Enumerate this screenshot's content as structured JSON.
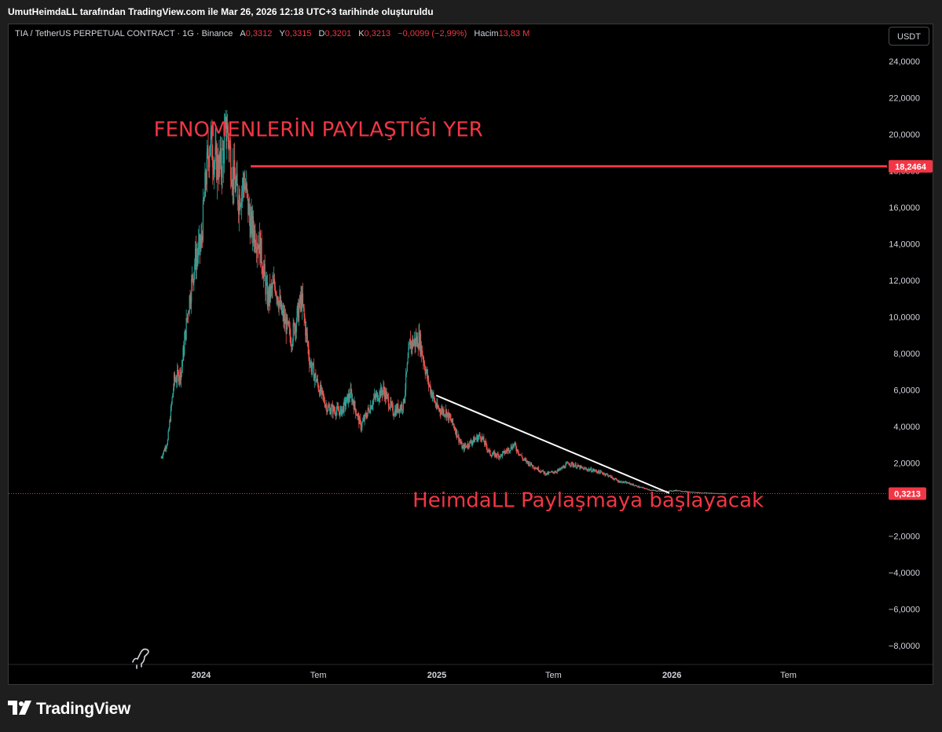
{
  "header": {
    "attribution": "UmutHeimdaLL tarafından TradingView.com ile Mar 26, 2026 12:18 UTC+3 tarihinde oluşturuldu"
  },
  "legend": {
    "symbol": "TIA / TetherUS PERPETUAL CONTRACT · 1G · Binance",
    "open_label": "A",
    "open_value": "0,3312",
    "high_label": "Y",
    "high_value": "0,3315",
    "low_label": "D",
    "low_value": "0,3201",
    "close_label": "K",
    "close_value": "0,3213",
    "change": "−0,0099 (−2,99%)",
    "volume_label": "Hacim",
    "volume_value": "13,83 M"
  },
  "currency_button": "USDT",
  "colors": {
    "up": "#26a69a",
    "down": "#ef5350",
    "accent_red": "#f23645",
    "annotation_red": "#f23645",
    "trendline": "#ffffff",
    "axis_text": "#d1d4dc"
  },
  "footer": {
    "brand": "TradingView",
    "brand_icon": "tradingview-logo-icon"
  },
  "chart_data": {
    "type": "candlestick",
    "y_axis": {
      "ticks": [
        24,
        22,
        20,
        18,
        16,
        14,
        12,
        10,
        8,
        6,
        4,
        2,
        -2,
        -4,
        -6,
        -8
      ],
      "tick_labels": [
        "24,0000",
        "22,0000",
        "20,0000",
        "18,0000",
        "16,0000",
        "14,0000",
        "12,0000",
        "10,0000",
        "8,0000",
        "6,0000",
        "4,0000",
        "2,0000",
        "−2,0000",
        "−4,0000",
        "−6,0000",
        "−8,0000"
      ],
      "ylim": [
        -9,
        25.5
      ]
    },
    "x_axis": {
      "labels": [
        "2024",
        "Tem",
        "2025",
        "Tem",
        "2026",
        "Tem"
      ],
      "label_dates": [
        "2024-01-01",
        "2024-07-01",
        "2025-01-01",
        "2025-07-01",
        "2026-01-01",
        "2026-07-01"
      ]
    },
    "price_path": [
      {
        "date": "2023-10-31",
        "price": 2.3
      },
      {
        "date": "2023-11-10",
        "price": 3.2
      },
      {
        "date": "2023-11-20",
        "price": 6.5
      },
      {
        "date": "2023-12-01",
        "price": 7.0
      },
      {
        "date": "2023-12-12",
        "price": 10.5
      },
      {
        "date": "2023-12-22",
        "price": 13.0
      },
      {
        "date": "2024-01-01",
        "price": 14.0
      },
      {
        "date": "2024-01-08",
        "price": 17.5
      },
      {
        "date": "2024-01-15",
        "price": 19.8
      },
      {
        "date": "2024-01-22",
        "price": 18.5
      },
      {
        "date": "2024-02-01",
        "price": 18.2
      },
      {
        "date": "2024-02-10",
        "price": 20.5
      },
      {
        "date": "2024-02-18",
        "price": 18.0
      },
      {
        "date": "2024-02-28",
        "price": 16.5
      },
      {
        "date": "2024-03-08",
        "price": 17.5
      },
      {
        "date": "2024-03-18",
        "price": 15.0
      },
      {
        "date": "2024-04-01",
        "price": 14.0
      },
      {
        "date": "2024-04-13",
        "price": 11.0
      },
      {
        "date": "2024-04-25",
        "price": 11.8
      },
      {
        "date": "2024-05-05",
        "price": 10.2
      },
      {
        "date": "2024-05-20",
        "price": 8.8
      },
      {
        "date": "2024-06-05",
        "price": 11.0
      },
      {
        "date": "2024-06-18",
        "price": 7.5
      },
      {
        "date": "2024-07-01",
        "price": 6.2
      },
      {
        "date": "2024-07-15",
        "price": 5.0
      },
      {
        "date": "2024-08-05",
        "price": 4.8
      },
      {
        "date": "2024-08-20",
        "price": 5.8
      },
      {
        "date": "2024-09-05",
        "price": 4.0
      },
      {
        "date": "2024-09-25",
        "price": 5.5
      },
      {
        "date": "2024-10-10",
        "price": 6.0
      },
      {
        "date": "2024-10-25",
        "price": 4.8
      },
      {
        "date": "2024-11-10",
        "price": 5.2
      },
      {
        "date": "2024-11-20",
        "price": 8.5
      },
      {
        "date": "2024-12-05",
        "price": 8.8
      },
      {
        "date": "2024-12-18",
        "price": 6.5
      },
      {
        "date": "2025-01-01",
        "price": 5.0
      },
      {
        "date": "2025-01-15",
        "price": 4.8
      },
      {
        "date": "2025-01-28",
        "price": 4.0
      },
      {
        "date": "2025-02-10",
        "price": 2.8
      },
      {
        "date": "2025-02-25",
        "price": 3.2
      },
      {
        "date": "2025-03-10",
        "price": 3.5
      },
      {
        "date": "2025-03-25",
        "price": 2.5
      },
      {
        "date": "2025-04-10",
        "price": 2.4
      },
      {
        "date": "2025-05-01",
        "price": 3.0
      },
      {
        "date": "2025-05-15",
        "price": 2.2
      },
      {
        "date": "2025-06-01",
        "price": 1.8
      },
      {
        "date": "2025-06-20",
        "price": 1.4
      },
      {
        "date": "2025-07-10",
        "price": 1.6
      },
      {
        "date": "2025-07-25",
        "price": 2.0
      },
      {
        "date": "2025-08-15",
        "price": 1.7
      },
      {
        "date": "2025-09-01",
        "price": 1.6
      },
      {
        "date": "2025-09-20",
        "price": 1.4
      },
      {
        "date": "2025-10-10",
        "price": 1.0
      },
      {
        "date": "2025-10-25",
        "price": 0.9
      },
      {
        "date": "2025-11-10",
        "price": 0.7
      },
      {
        "date": "2025-12-01",
        "price": 0.5
      },
      {
        "date": "2025-12-20",
        "price": 0.45
      },
      {
        "date": "2026-01-10",
        "price": 0.5
      },
      {
        "date": "2026-01-25",
        "price": 0.42
      },
      {
        "date": "2026-02-10",
        "price": 0.38
      },
      {
        "date": "2026-03-01",
        "price": 0.35
      },
      {
        "date": "2026-03-26",
        "price": 0.3213
      }
    ],
    "horizontal_line": {
      "value": 18.2464,
      "label": "18,2464",
      "start_date": "2024-03-18"
    },
    "last_price": {
      "value": 0.3213,
      "label": "0,3213"
    },
    "trendline": {
      "start": {
        "date": "2024-12-31",
        "price": 5.7
      },
      "end": {
        "date": "2025-12-28",
        "price": 0.35
      }
    },
    "annotations": [
      {
        "text": "FENOMENLERİN PAYLAŞTIĞI YER",
        "date": "2024-07-01",
        "price": 19.9
      },
      {
        "text": "HeimdaLL Paylaşmaya başlayacak",
        "date": "2025-08-24",
        "price": -0.4
      }
    ]
  }
}
